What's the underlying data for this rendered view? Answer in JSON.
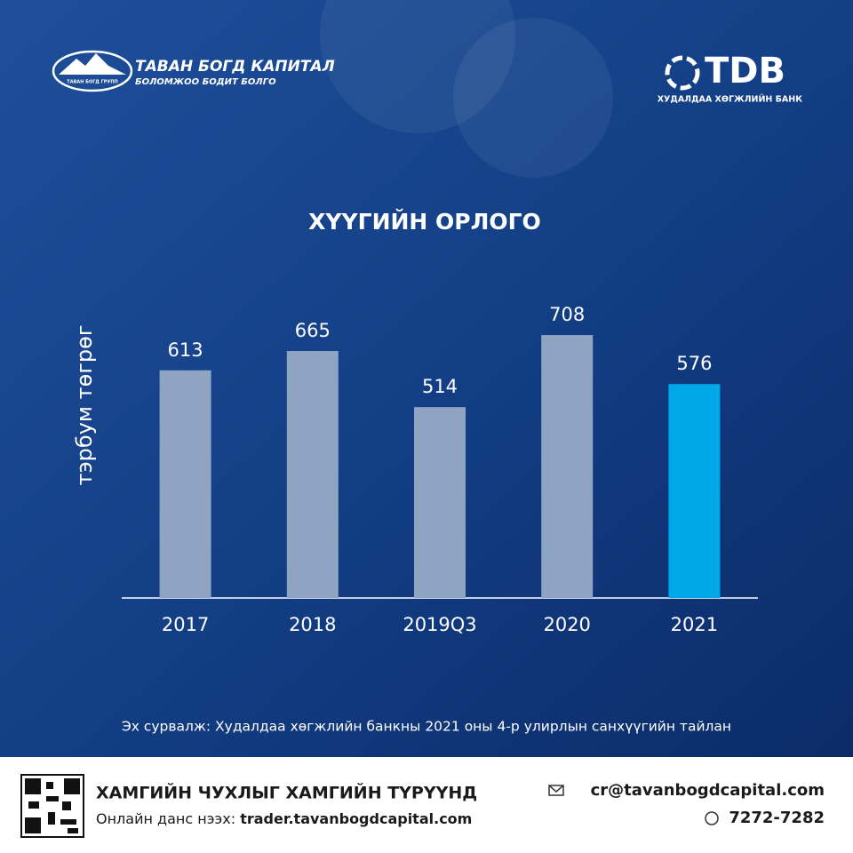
{
  "header": {
    "left_logo_title": "ТАВАН БОГД КАПИТАЛ",
    "left_logo_slogan": "БОЛОМЖОО БОДИТ БОЛГО",
    "left_logo_small": "ТАВАН БОГД ГРУПП",
    "right_logo_title": "TDB",
    "right_logo_subtitle": "ХУДАЛДАА ХӨГЖЛИЙН БАНК"
  },
  "chart_data": {
    "type": "bar",
    "title": "ХҮҮГИЙН ОРЛОГО",
    "y_label": "тэрбум төгрөг",
    "categories": [
      "2017",
      "2018",
      "2019Q3",
      "2020",
      "2021"
    ],
    "values": [
      613,
      665,
      514,
      708,
      576
    ],
    "colors": [
      "#8fa4c3",
      "#8fa4c3",
      "#8fa4c3",
      "#8fa4c3",
      "#00a8e8"
    ]
  },
  "source": "Эх сурвалж: Худалдаа хөгжлийн банкны 2021 оны 4-р улирлын санхүүгийн  тайлан",
  "footer": {
    "slogan": "ХАМГИЙН ЧУХЛЫГ ХАМГИЙН ТҮРҮҮНД",
    "account_label": "Онлайн данс нээх: ",
    "account_url": "trader.tavanbogdcapital.com",
    "email": "cr@tavanbogdcapital.com",
    "phone": "7272-7282"
  }
}
